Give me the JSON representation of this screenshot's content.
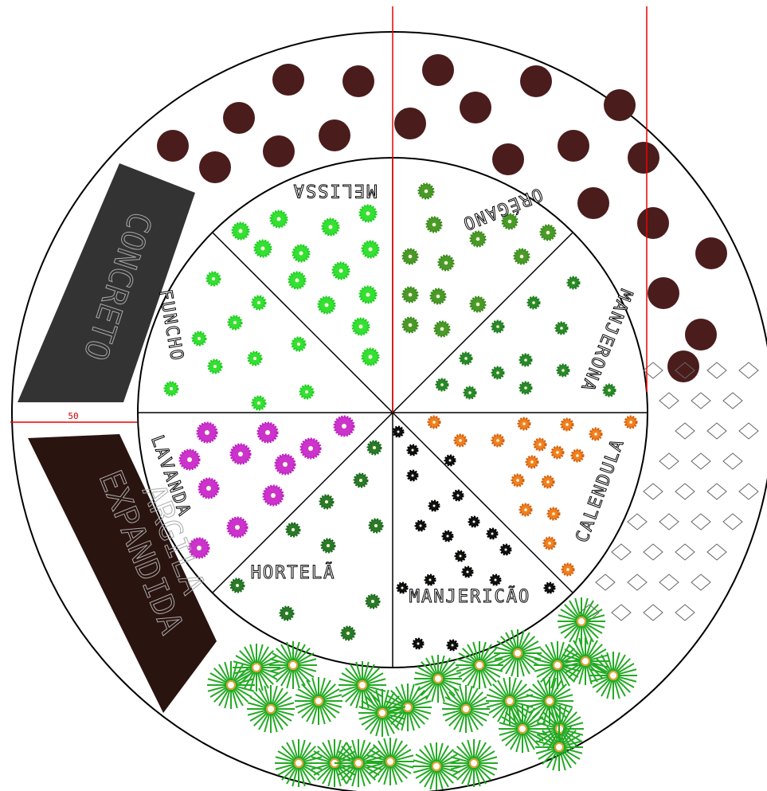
{
  "areas": {
    "concreto": "CONCRETO",
    "argila": [
      "ARGILA",
      "EXPANDIDA"
    ]
  },
  "dimension": "50",
  "sectors": [
    "MELISSA",
    "ORÉGANO",
    "MANJERONA",
    "CALENDULA",
    "MANJERICÃO",
    "HORTELÃ",
    "LAVANDA",
    "FUNCHO"
  ]
}
